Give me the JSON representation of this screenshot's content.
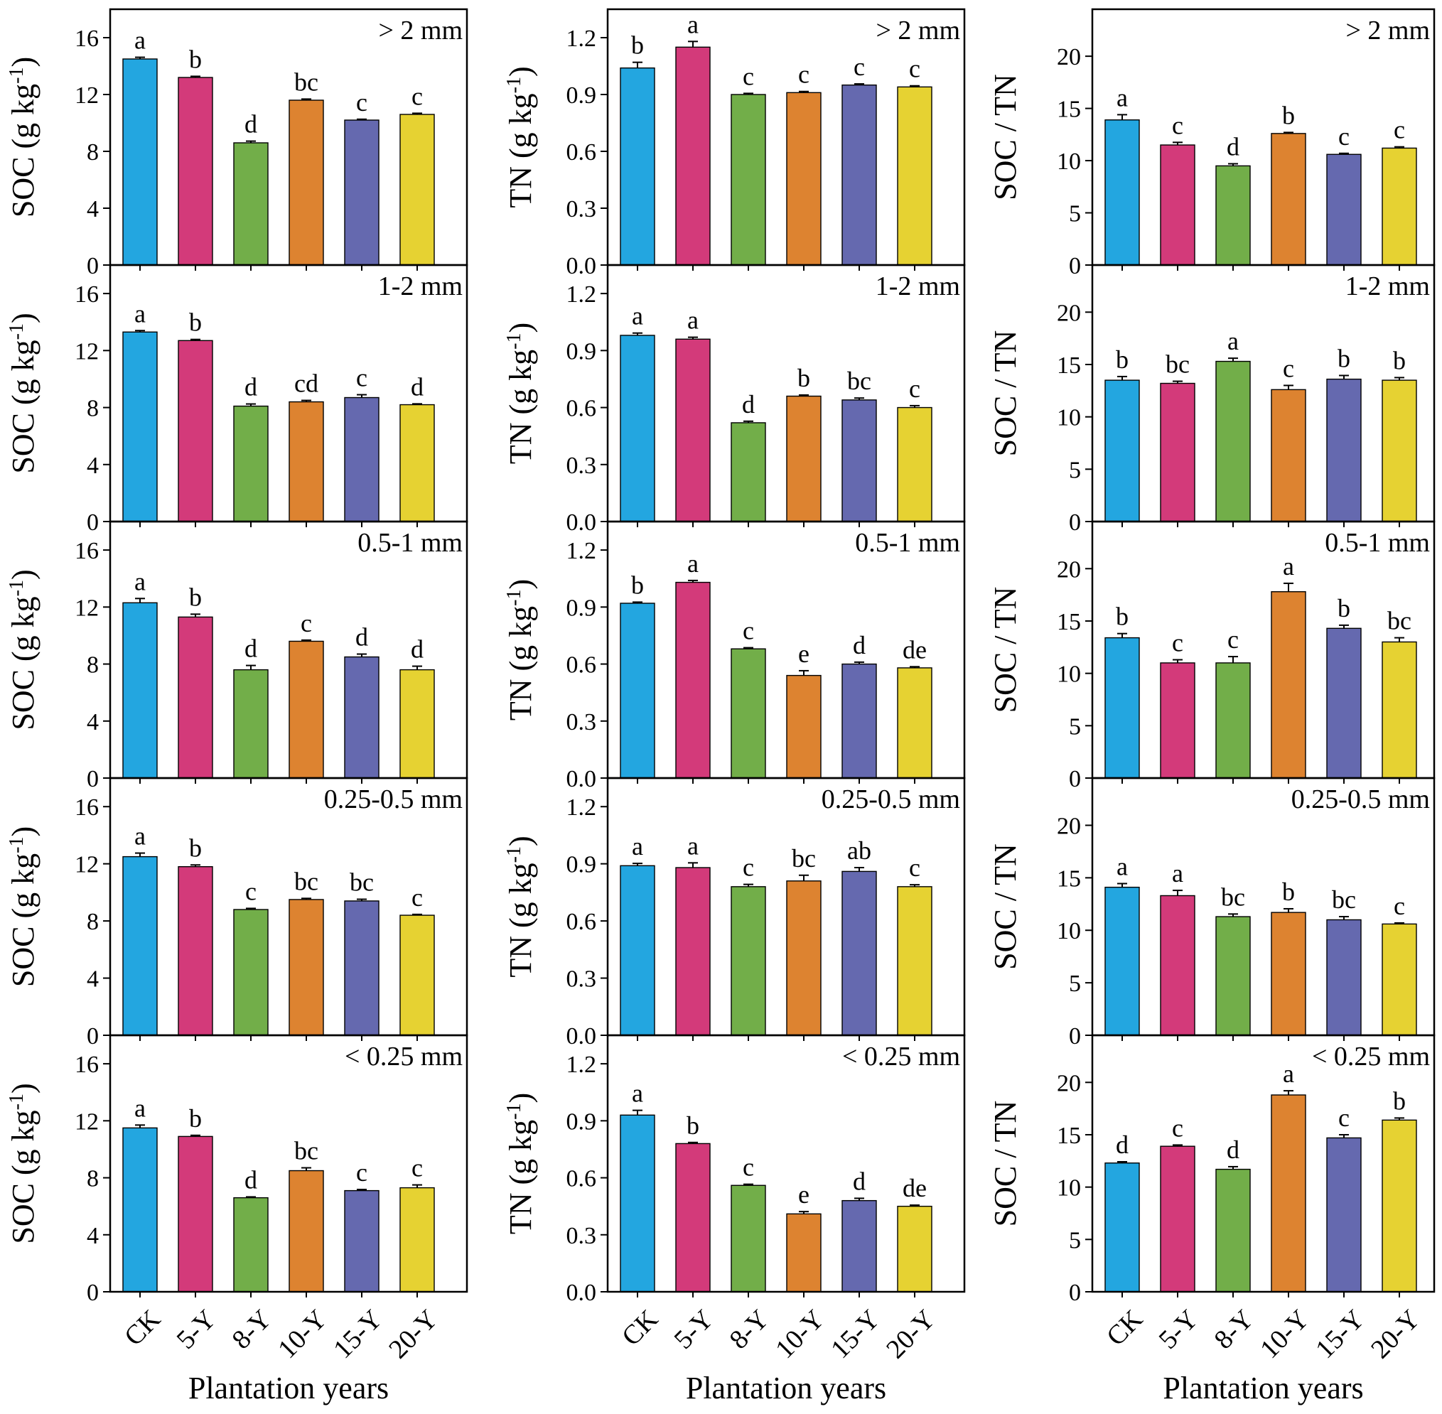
{
  "figure": {
    "categories": [
      "CK",
      "5-Y",
      "8-Y",
      "10-Y",
      "15-Y",
      "20-Y"
    ],
    "bar_colors": [
      "#23a6e0",
      "#d33a7a",
      "#72ae49",
      "#dd8330",
      "#6569af",
      "#e6d232"
    ],
    "x_label": "Plantation years",
    "row_labels": [
      "> 2 mm",
      "1-2 mm",
      "0.5-1 mm",
      "0.25-0.5 mm",
      "< 0.25 mm"
    ]
  },
  "chart_data": [
    {
      "type": "bar",
      "column": "SOC",
      "ylabel": "SOC (g kg-1)",
      "ylabel_base": "SOC (g kg",
      "ylabel_sup": "-1",
      "ylabel_end": ")",
      "ylim": [
        0,
        18
      ],
      "yticks": [
        0,
        4,
        8,
        12,
        16
      ],
      "panels": [
        {
          "title": "> 2 mm",
          "values": [
            14.5,
            13.2,
            8.6,
            11.6,
            10.2,
            10.6
          ],
          "errors": [
            0.12,
            0.08,
            0.12,
            0.08,
            0.06,
            0.08
          ],
          "letters": [
            "a",
            "b",
            "d",
            "bc",
            "c",
            "c"
          ]
        },
        {
          "title": "1-2 mm",
          "values": [
            13.3,
            12.7,
            8.1,
            8.4,
            8.7,
            8.2
          ],
          "errors": [
            0.1,
            0.08,
            0.15,
            0.1,
            0.2,
            0.06
          ],
          "letters": [
            "a",
            "b",
            "d",
            "cd",
            "c",
            "d"
          ]
        },
        {
          "title": "0.5-1 mm",
          "values": [
            12.3,
            11.3,
            7.6,
            9.6,
            8.5,
            7.6
          ],
          "errors": [
            0.3,
            0.2,
            0.3,
            0.08,
            0.2,
            0.25
          ],
          "letters": [
            "a",
            "b",
            "d",
            "c",
            "d",
            "d"
          ]
        },
        {
          "title": "0.25-0.5 mm",
          "values": [
            12.5,
            11.8,
            8.8,
            9.5,
            9.4,
            8.4
          ],
          "errors": [
            0.25,
            0.12,
            0.08,
            0.08,
            0.12,
            0.06
          ],
          "letters": [
            "a",
            "b",
            "c",
            "bc",
            "bc",
            "c"
          ]
        },
        {
          "title": "< 0.25 mm",
          "values": [
            11.5,
            10.9,
            6.6,
            8.5,
            7.1,
            7.3
          ],
          "errors": [
            0.2,
            0.08,
            0.06,
            0.2,
            0.08,
            0.2
          ],
          "letters": [
            "a",
            "b",
            "d",
            "bc",
            "c",
            "c"
          ]
        }
      ]
    },
    {
      "type": "bar",
      "column": "TN",
      "ylabel": "TN (g kg-1)",
      "ylabel_base": "TN (g kg",
      "ylabel_sup": "-1",
      "ylabel_end": ")",
      "ylim": [
        0,
        1.35
      ],
      "yticks": [
        0.0,
        0.3,
        0.6,
        0.9,
        1.2
      ],
      "panels": [
        {
          "title": "> 2 mm",
          "values": [
            1.04,
            1.15,
            0.9,
            0.91,
            0.95,
            0.94
          ],
          "errors": [
            0.03,
            0.03,
            0.006,
            0.006,
            0.006,
            0.006
          ],
          "letters": [
            "b",
            "a",
            "c",
            "c",
            "c",
            "c"
          ]
        },
        {
          "title": "1-2 mm",
          "values": [
            0.98,
            0.96,
            0.52,
            0.66,
            0.64,
            0.6
          ],
          "errors": [
            0.012,
            0.01,
            0.008,
            0.006,
            0.01,
            0.01
          ],
          "letters": [
            "a",
            "a",
            "d",
            "b",
            "bc",
            "c"
          ]
        },
        {
          "title": "0.5-1 mm",
          "values": [
            0.92,
            1.03,
            0.68,
            0.54,
            0.6,
            0.58
          ],
          "errors": [
            0.006,
            0.01,
            0.006,
            0.025,
            0.01,
            0.006
          ],
          "letters": [
            "b",
            "a",
            "c",
            "e",
            "d",
            "de"
          ]
        },
        {
          "title": "0.25-0.5 mm",
          "values": [
            0.89,
            0.88,
            0.78,
            0.81,
            0.86,
            0.78
          ],
          "errors": [
            0.012,
            0.025,
            0.012,
            0.03,
            0.02,
            0.01
          ],
          "letters": [
            "a",
            "a",
            "c",
            "bc",
            "ab",
            "c"
          ]
        },
        {
          "title": "< 0.25 mm",
          "values": [
            0.93,
            0.78,
            0.56,
            0.41,
            0.48,
            0.45
          ],
          "errors": [
            0.025,
            0.006,
            0.006,
            0.012,
            0.012,
            0.006
          ],
          "letters": [
            "a",
            "b",
            "c",
            "e",
            "d",
            "de"
          ]
        }
      ]
    },
    {
      "type": "bar",
      "column": "SOC / TN",
      "ylabel": "SOC / TN",
      "ylabel_base": "SOC / TN",
      "ylabel_sup": "",
      "ylabel_end": "",
      "ylim": [
        0,
        24.5
      ],
      "yticks": [
        0,
        5,
        10,
        15,
        20
      ],
      "panels": [
        {
          "title": "> 2 mm",
          "values": [
            13.9,
            11.5,
            9.5,
            12.6,
            10.6,
            11.2
          ],
          "errors": [
            0.5,
            0.25,
            0.2,
            0.1,
            0.1,
            0.12
          ],
          "letters": [
            "a",
            "c",
            "d",
            "b",
            "c",
            "c"
          ]
        },
        {
          "title": "1-2 mm",
          "values": [
            13.5,
            13.2,
            15.3,
            12.6,
            13.6,
            13.5
          ],
          "errors": [
            0.35,
            0.2,
            0.3,
            0.4,
            0.35,
            0.25
          ],
          "letters": [
            "b",
            "bc",
            "a",
            "c",
            "b",
            "b"
          ]
        },
        {
          "title": "0.5-1 mm",
          "values": [
            13.4,
            11.0,
            11.0,
            17.8,
            14.3,
            13.0
          ],
          "errors": [
            0.4,
            0.3,
            0.6,
            0.8,
            0.3,
            0.4
          ],
          "letters": [
            "b",
            "c",
            "c",
            "a",
            "b",
            "bc"
          ]
        },
        {
          "title": "0.25-0.5 mm",
          "values": [
            14.1,
            13.3,
            11.3,
            11.7,
            11.0,
            10.6
          ],
          "errors": [
            0.35,
            0.5,
            0.25,
            0.35,
            0.3,
            0.1
          ],
          "letters": [
            "a",
            "a",
            "bc",
            "b",
            "bc",
            "c"
          ]
        },
        {
          "title": "< 0.25 mm",
          "values": [
            12.3,
            13.9,
            11.7,
            18.8,
            14.7,
            16.4
          ],
          "errors": [
            0.12,
            0.12,
            0.25,
            0.4,
            0.3,
            0.2
          ],
          "letters": [
            "d",
            "c",
            "d",
            "a",
            "c",
            "b"
          ]
        }
      ]
    }
  ]
}
